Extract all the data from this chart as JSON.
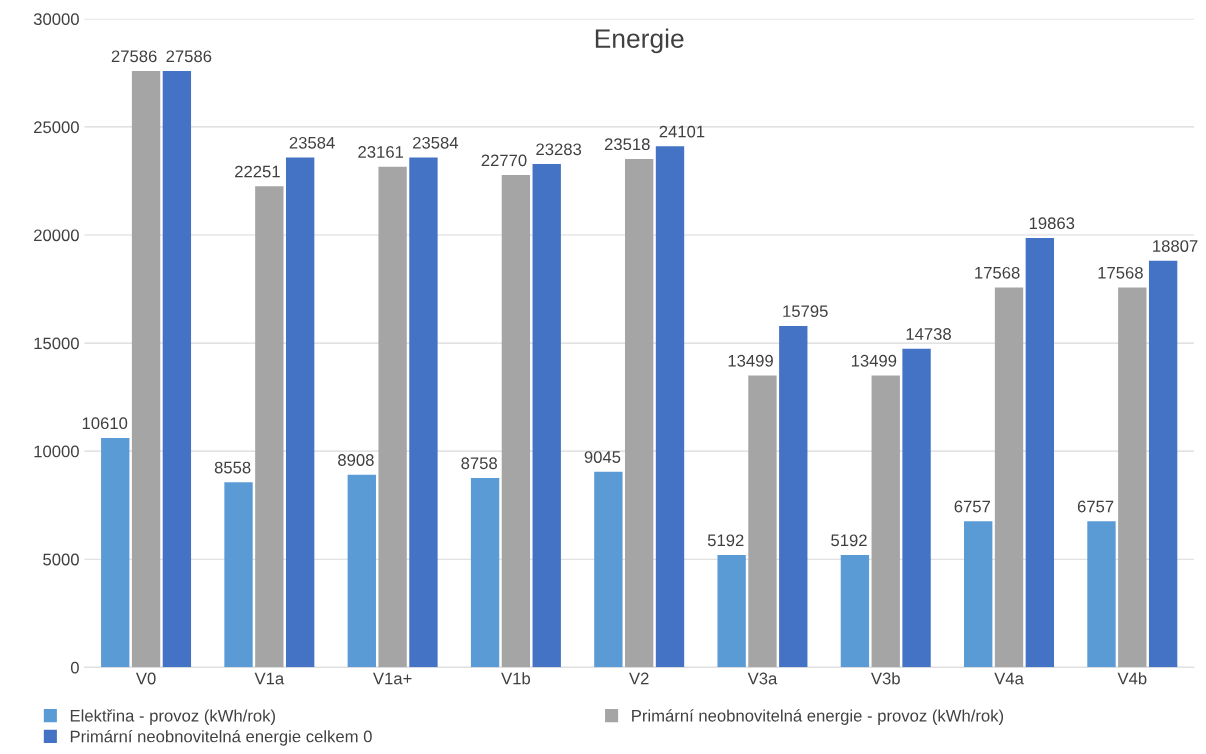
{
  "chart_data": {
    "type": "bar",
    "title": "Energie",
    "categories": [
      "V0",
      "V1a",
      "V1a+",
      "V1b",
      "V2",
      "V3a",
      "V3b",
      "V4a",
      "V4b"
    ],
    "series": [
      {
        "name": "Elektřina - provoz (kWh/rok)",
        "color": "#5b9bd5",
        "values": [
          10610,
          8558,
          8908,
          8758,
          9045,
          5192,
          5192,
          6757,
          6757
        ]
      },
      {
        "name": "Primární neobnovitelná energie - provoz (kWh/rok)",
        "color": "#a5a5a5",
        "values": [
          27586,
          22251,
          23161,
          22770,
          23518,
          13499,
          13499,
          17568,
          17568
        ]
      },
      {
        "name": "Primární neobnovitelná energie celkem 0",
        "color": "#4472c4",
        "values": [
          27586,
          23584,
          23584,
          23283,
          24101,
          15795,
          14738,
          19863,
          18807
        ]
      }
    ],
    "ylim": [
      0,
      30000
    ],
    "yticks": [
      0,
      5000,
      10000,
      15000,
      20000,
      25000,
      30000
    ],
    "grid": "y",
    "legend": "bottom",
    "data_labels": true
  }
}
